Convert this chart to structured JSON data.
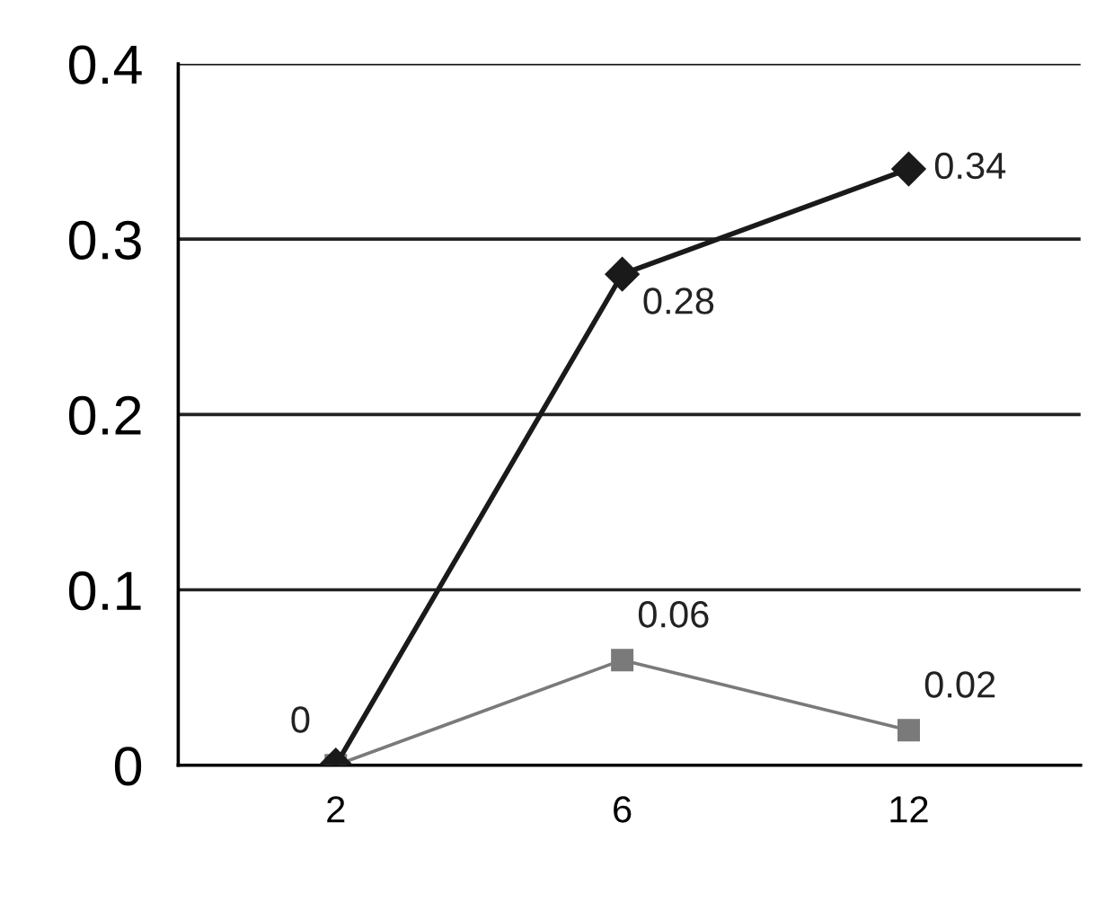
{
  "chart_data": {
    "type": "line",
    "categories": [
      "2",
      "6",
      "12"
    ],
    "series": [
      {
        "color": "#1a1a1a",
        "values": [
          0,
          0.28,
          0.34
        ],
        "marker": "diamond",
        "value_labels": [
          null,
          "0.28",
          "0.34"
        ]
      },
      {
        "color": "#7a7a7a",
        "values": [
          0,
          0.06,
          0.02
        ],
        "marker": "square",
        "value_labels": [
          "0",
          "0.06",
          "0.02"
        ]
      }
    ],
    "ylim": [
      0,
      0.4
    ],
    "yticks": [
      0,
      0.1,
      0.2,
      0.3,
      0.4
    ],
    "grid": "y",
    "legend": false
  }
}
